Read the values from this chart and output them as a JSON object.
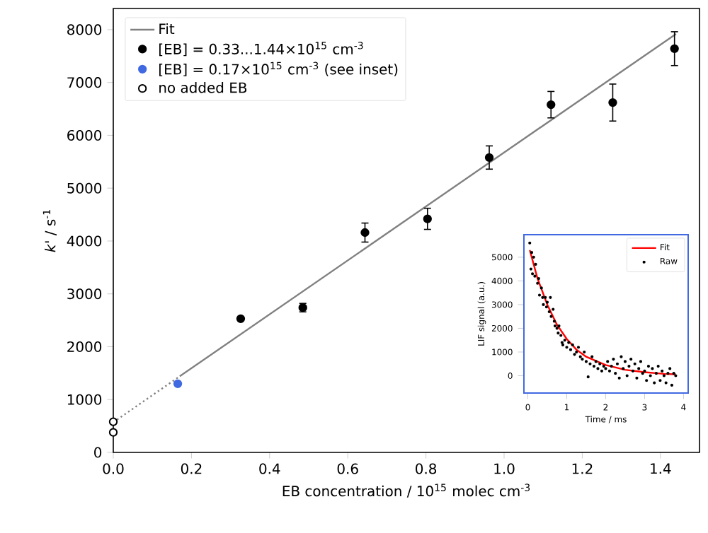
{
  "chart_data": [
    {
      "type": "scatter",
      "xlabel": "EB concentration / 10$^{15}$ molec cm$^{-3}$",
      "ylabel": "*k*' / s$^{-1}$",
      "xlim": [
        0,
        1.5
      ],
      "ylim": [
        0,
        8400
      ],
      "xticks": [
        {
          "value": 0,
          "label": "0.0"
        },
        {
          "value": 0.2,
          "label": "0.2"
        },
        {
          "value": 0.4,
          "label": "0.4"
        },
        {
          "value": 0.6,
          "label": "0.6"
        },
        {
          "value": 0.8,
          "label": "0.8"
        },
        {
          "value": 1.0,
          "label": "1.0"
        },
        {
          "value": 1.2,
          "label": "1.2"
        },
        {
          "value": 1.4,
          "label": "1.4"
        }
      ],
      "yticks": [
        0,
        1000,
        2000,
        3000,
        4000,
        5000,
        6000,
        7000,
        8000
      ],
      "legend": "top left",
      "series": [
        {
          "name": "Fit",
          "type": "line",
          "color": "#808080",
          "line_style": "solid",
          "x": [
            0.17,
            1.44
          ],
          "values": [
            1440,
            7920
          ]
        },
        {
          "type": "line",
          "color": "#808080",
          "line_style": "dotted",
          "x": [
            0,
            0.17
          ],
          "values": [
            570,
            1440
          ]
        },
        {
          "name": "[EB] = 0.33...1.44×10$^{15}$ cm$^{-3}$",
          "marker": "circle",
          "color": "#000000",
          "x": [
            0.326,
            0.485,
            0.644,
            0.804,
            0.962,
            1.12,
            1.278,
            1.436
          ],
          "values": [
            2530,
            2740,
            4160,
            4420,
            5580,
            6580,
            6620,
            7640
          ],
          "errors": [
            null,
            80,
            180,
            200,
            220,
            250,
            350,
            320
          ]
        },
        {
          "name": "[EB] = 0.17×10$^{15}$ cm$^{-3}$ (see inset)",
          "marker": "circle",
          "color": "#4169e1",
          "x": [
            0.165
          ],
          "values": [
            1300
          ]
        },
        {
          "name": "no added EB",
          "marker": "circle",
          "color": "#ffffff",
          "x": [
            0,
            0
          ],
          "values": [
            580,
            380
          ]
        }
      ]
    },
    {
      "type": "scatter",
      "xlabel": "Time / ms",
      "ylabel": "LIF signal (a.u.)",
      "xlim": [
        -0.1,
        4.12
      ],
      "ylim": [
        -730,
        5950
      ],
      "xticks": [
        0,
        1,
        2,
        3,
        4
      ],
      "yticks": [
        0,
        1000,
        2000,
        3000,
        4000,
        5000
      ],
      "legend": "top right",
      "series": [
        {
          "name": "Fit",
          "type": "line",
          "color": "#ff0000",
          "line_style": "solid",
          "x": [
            0.05,
            0.25,
            0.5,
            0.75,
            1.0,
            1.25,
            1.5,
            2.0,
            2.5,
            3.0,
            3.5,
            3.8
          ],
          "values": [
            5300,
            4100,
            3000,
            2150,
            1550,
            1100,
            800,
            450,
            250,
            150,
            80,
            60
          ]
        },
        {
          "name": "Raw",
          "marker": "circle",
          "color": "#000000",
          "x": [
            0.05,
            0.08,
            0.1,
            0.12,
            0.15,
            0.18,
            0.2,
            0.25,
            0.28,
            0.3,
            0.35,
            0.38,
            0.4,
            0.45,
            0.48,
            0.5,
            0.55,
            0.58,
            0.6,
            0.65,
            0.68,
            0.7,
            0.75,
            0.78,
            0.8,
            0.85,
            0.88,
            0.9,
            0.95,
            1.0,
            1.05,
            1.1,
            1.15,
            1.2,
            1.25,
            1.3,
            1.35,
            1.4,
            1.45,
            1.5,
            1.55,
            1.6,
            1.65,
            1.7,
            1.75,
            1.8,
            1.85,
            1.9,
            1.95,
            2.0,
            2.05,
            2.1,
            2.15,
            2.2,
            2.25,
            2.3,
            2.35,
            2.4,
            2.45,
            2.5,
            2.55,
            2.6,
            2.65,
            2.7,
            2.75,
            2.8,
            2.85,
            2.9,
            2.95,
            3.0,
            3.05,
            3.1,
            3.15,
            3.2,
            3.25,
            3.3,
            3.35,
            3.4,
            3.45,
            3.5,
            3.55,
            3.6,
            3.65,
            3.7,
            3.75,
            3.8
          ],
          "values": [
            5600,
            4500,
            5200,
            4300,
            5000,
            4200,
            4700,
            3900,
            4100,
            3400,
            3700,
            3300,
            3000,
            3300,
            2900,
            3100,
            2700,
            3300,
            2500,
            2800,
            2300,
            2100,
            2000,
            1800,
            2100,
            1700,
            1400,
            1300,
            1500,
            1200,
            1400,
            1100,
            1300,
            900,
            1000,
            1200,
            800,
            700,
            1000,
            600,
            -50,
            500,
            800,
            400,
            600,
            300,
            500,
            200,
            400,
            300,
            600,
            200,
            400,
            700,
            100,
            500,
            -100,
            800,
            300,
            600,
            0,
            400,
            700,
            200,
            500,
            -100,
            300,
            600,
            100,
            200,
            -200,
            400,
            0,
            300,
            -300,
            100,
            400,
            -200,
            200,
            0,
            -300,
            100,
            300,
            -400,
            100,
            0
          ]
        }
      ]
    }
  ]
}
